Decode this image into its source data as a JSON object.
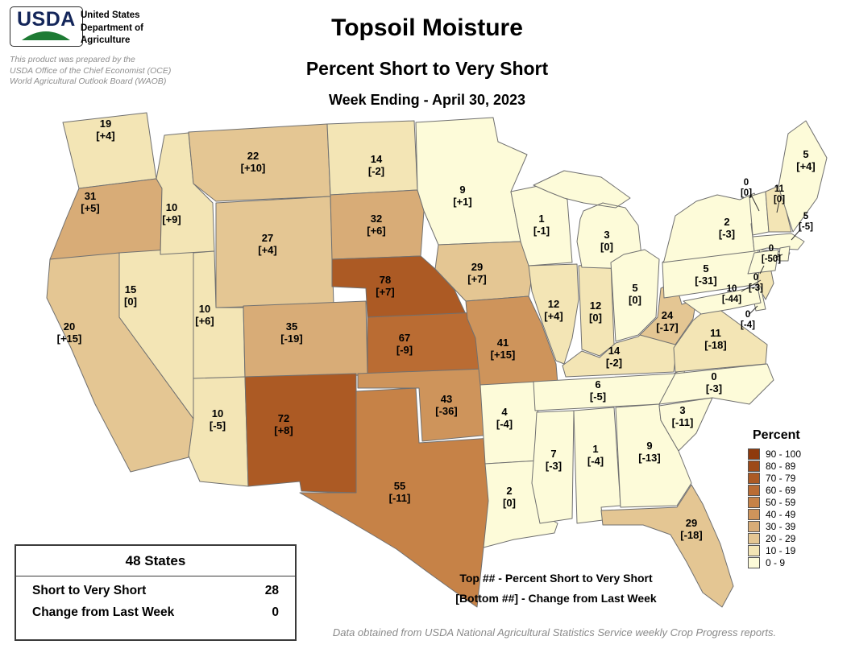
{
  "header": {
    "logo_text": "USDA",
    "org_lines": [
      "United States",
      "Department of",
      "Agriculture"
    ],
    "prepared_by_lines": [
      "This product was prepared by the",
      "USDA Office of the Chief Economist (OCE)",
      "World Agricultural Outlook Board (WAOB)"
    ],
    "title": "Topsoil Moisture",
    "subtitle": "Percent Short to Very Short",
    "date_line": "Week Ending - April 30, 2023"
  },
  "summary_box": {
    "title": "48 States",
    "rows": [
      {
        "label": "Short to Very Short",
        "value": "28"
      },
      {
        "label": "Change from Last Week",
        "value": "0"
      }
    ]
  },
  "key_notes": {
    "top": "Top ## - Percent Short to Very Short",
    "bottom": "[Bottom ##] - Change from Last Week"
  },
  "footer_note": "Data obtained from USDA National Agricultural Statistics Service weekly Crop Progress reports.",
  "legend": {
    "title": "Percent",
    "default_color": "#FDFBD9",
    "buckets": [
      {
        "label": "90 - 100",
        "min": 90,
        "max": 100,
        "color": "#8E3A0D"
      },
      {
        "label": "80 - 89",
        "min": 80,
        "max": 89,
        "color": "#9D4A18"
      },
      {
        "label": "70 - 79",
        "min": 70,
        "max": 79,
        "color": "#AC5A24"
      },
      {
        "label": "60 - 69",
        "min": 60,
        "max": 69,
        "color": "#BA6C33"
      },
      {
        "label": "50 - 59",
        "min": 50,
        "max": 59,
        "color": "#C68247"
      },
      {
        "label": "40 - 49",
        "min": 40,
        "max": 49,
        "color": "#CE945B"
      },
      {
        "label": "30 - 39",
        "min": 30,
        "max": 39,
        "color": "#D8AC77"
      },
      {
        "label": "20 - 29",
        "min": 20,
        "max": 29,
        "color": "#E4C693"
      },
      {
        "label": "10 - 19",
        "min": 10,
        "max": 19,
        "color": "#F3E5B5"
      },
      {
        "label": "0 - 9",
        "min": 0,
        "max": 9,
        "color": "#FDFBD9"
      }
    ]
  },
  "chart_data": {
    "type": "choropleth-map",
    "title": "Topsoil Moisture - Percent Short to Very Short",
    "week_ending": "April 30, 2023",
    "value_semantics": {
      "top_number": "Percent Short to Very Short",
      "bottom_number": "Change from Last Week"
    },
    "states": [
      {
        "id": "WA",
        "name": "Washington",
        "value": 19,
        "change": "+4"
      },
      {
        "id": "OR",
        "name": "Oregon",
        "value": 31,
        "change": "+5"
      },
      {
        "id": "CA",
        "name": "California",
        "value": 20,
        "change": "+15"
      },
      {
        "id": "NV",
        "name": "Nevada",
        "value": 15,
        "change": "0"
      },
      {
        "id": "ID",
        "name": "Idaho",
        "value": 10,
        "change": "+9"
      },
      {
        "id": "UT",
        "name": "Utah",
        "value": 10,
        "change": "+6"
      },
      {
        "id": "AZ",
        "name": "Arizona",
        "value": 10,
        "change": "-5"
      },
      {
        "id": "MT",
        "name": "Montana",
        "value": 22,
        "change": "+10"
      },
      {
        "id": "WY",
        "name": "Wyoming",
        "value": 27,
        "change": "+4"
      },
      {
        "id": "CO",
        "name": "Colorado",
        "value": 35,
        "change": "-19"
      },
      {
        "id": "NM",
        "name": "New Mexico",
        "value": 72,
        "change": "+8"
      },
      {
        "id": "ND",
        "name": "North Dakota",
        "value": 14,
        "change": "-2"
      },
      {
        "id": "SD",
        "name": "South Dakota",
        "value": 32,
        "change": "+6"
      },
      {
        "id": "NE",
        "name": "Nebraska",
        "value": 78,
        "change": "+7"
      },
      {
        "id": "KS",
        "name": "Kansas",
        "value": 67,
        "change": "-9"
      },
      {
        "id": "OK",
        "name": "Oklahoma",
        "value": 43,
        "change": "-36"
      },
      {
        "id": "TX",
        "name": "Texas",
        "value": 55,
        "change": "-11"
      },
      {
        "id": "MN",
        "name": "Minnesota",
        "value": 9,
        "change": "+1"
      },
      {
        "id": "IA",
        "name": "Iowa",
        "value": 29,
        "change": "+7"
      },
      {
        "id": "MO",
        "name": "Missouri",
        "value": 41,
        "change": "+15"
      },
      {
        "id": "AR",
        "name": "Arkansas",
        "value": 4,
        "change": "-4"
      },
      {
        "id": "LA",
        "name": "Louisiana",
        "value": 2,
        "change": "0"
      },
      {
        "id": "WI",
        "name": "Wisconsin",
        "value": 1,
        "change": "-1"
      },
      {
        "id": "IL",
        "name": "Illinois",
        "value": 12,
        "change": "+4"
      },
      {
        "id": "IN",
        "name": "Indiana",
        "value": 12,
        "change": "0"
      },
      {
        "id": "MI",
        "name": "Michigan",
        "value": 3,
        "change": "0"
      },
      {
        "id": "OH",
        "name": "Ohio",
        "value": 5,
        "change": "0"
      },
      {
        "id": "KY",
        "name": "Kentucky",
        "value": 14,
        "change": "-2"
      },
      {
        "id": "TN",
        "name": "Tennessee",
        "value": 6,
        "change": "-5"
      },
      {
        "id": "MS",
        "name": "Mississippi",
        "value": 7,
        "change": "-3"
      },
      {
        "id": "AL",
        "name": "Alabama",
        "value": 1,
        "change": "-4"
      },
      {
        "id": "GA",
        "name": "Georgia",
        "value": 9,
        "change": "-13"
      },
      {
        "id": "FL",
        "name": "Florida",
        "value": 29,
        "change": "-18"
      },
      {
        "id": "SC",
        "name": "South Carolina",
        "value": 3,
        "change": "-11"
      },
      {
        "id": "NC",
        "name": "North Carolina",
        "value": 0,
        "change": "-3"
      },
      {
        "id": "VA",
        "name": "Virginia",
        "value": 11,
        "change": "-18"
      },
      {
        "id": "WV",
        "name": "West Virginia",
        "value": 24,
        "change": "-17"
      },
      {
        "id": "PA",
        "name": "Pennsylvania",
        "value": 5,
        "change": "-31"
      },
      {
        "id": "NY",
        "name": "New York",
        "value": 2,
        "change": "-3"
      },
      {
        "id": "NJ",
        "name": "New Jersey",
        "value": 10,
        "change": "-44"
      },
      {
        "id": "DE",
        "name": "Delaware",
        "value": 0,
        "change": "-4"
      },
      {
        "id": "MD",
        "name": "Maryland",
        "value": null,
        "change": null
      },
      {
        "id": "VT",
        "name": "Vermont",
        "value": 0,
        "change": "0"
      },
      {
        "id": "NH",
        "name": "New Hampshire",
        "value": 11,
        "change": "0"
      },
      {
        "id": "ME",
        "name": "Maine",
        "value": 5,
        "change": "+4"
      },
      {
        "id": "MA",
        "name": "Massachusetts",
        "value": 5,
        "change": "-5"
      },
      {
        "id": "RI",
        "name": "Rhode Island",
        "value": 0,
        "change": "-50"
      },
      {
        "id": "CT",
        "name": "Connecticut",
        "value": 0,
        "change": "-3"
      }
    ]
  }
}
